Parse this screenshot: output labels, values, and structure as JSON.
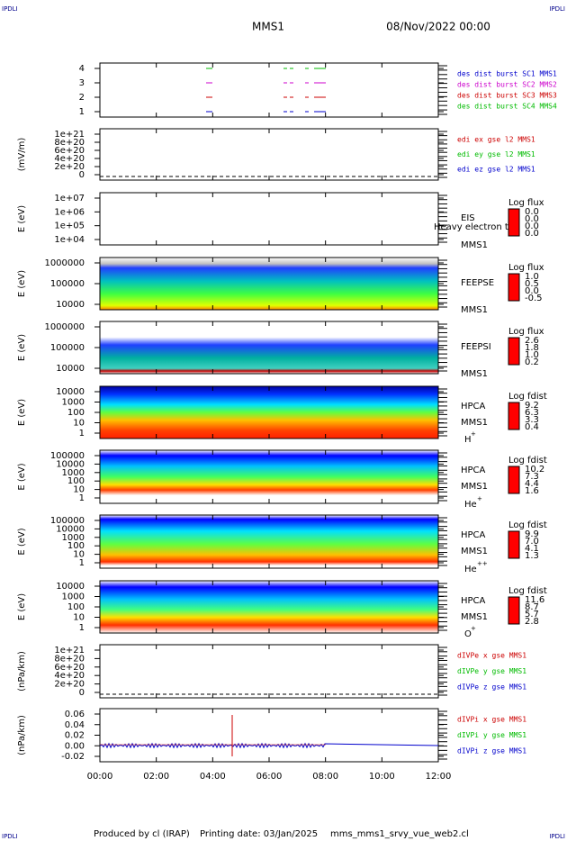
{
  "header": {
    "corners": [
      "IPDLI",
      "IPDLI",
      "IPDLI",
      "IPDLI"
    ],
    "spacecraft": "MMS1",
    "date": "08/Nov/2022 00:00"
  },
  "panels": [
    {
      "ylabel": "",
      "yticks": [
        "4",
        "3",
        "2",
        "1"
      ],
      "legend": [
        {
          "text": "des dist burst SC1 MMS1",
          "color": "#0000cc"
        },
        {
          "text": "des dist burst SC2 MMS2",
          "color": "#cc00cc"
        },
        {
          "text": "des dist burst SC3 MMS3",
          "color": "#cc0000"
        },
        {
          "text": "des dist burst SC4 MMS4",
          "color": "#00bb00"
        }
      ]
    },
    {
      "ylabel": "(mV/m)",
      "yticks": [
        "1e+21",
        "8e+20",
        "6e+20",
        "4e+20",
        "2e+20",
        "0"
      ],
      "legend": [
        {
          "text": "edi ex gse l2 MMS1",
          "color": "#cc0000"
        },
        {
          "text": "edi ey gse l2 MMS1",
          "color": "#00bb00"
        },
        {
          "text": "edi ez gse l2 MMS1",
          "color": "#0000cc"
        }
      ]
    },
    {
      "ylabel": "E (eV)",
      "yticks": [
        "1e+07",
        "1e+06",
        "1e+05",
        "1e+04"
      ],
      "instrument": [
        "EIS",
        "MMS1"
      ],
      "overlay": "Heavy electron to",
      "colorbar": {
        "title": "Log flux",
        "labels": [
          "0.0",
          "0.0",
          "0.0",
          "0.0"
        ]
      }
    },
    {
      "ylabel": "E (eV)",
      "yticks": [
        "1000000",
        "100000",
        "10000"
      ],
      "instrument": [
        "FEEPSE",
        "MMS1"
      ],
      "colorbar": {
        "title": "Log flux",
        "labels": [
          "1.0",
          "0.5",
          "0.0",
          "-0.5"
        ]
      }
    },
    {
      "ylabel": "E (eV)",
      "yticks": [
        "1000000",
        "100000",
        "10000"
      ],
      "instrument": [
        "FEEPSI",
        "MMS1"
      ],
      "colorbar": {
        "title": "Log flux",
        "labels": [
          "2.6",
          "1.8",
          "1.0",
          "0.2"
        ]
      }
    },
    {
      "ylabel": "E (eV)",
      "yticks": [
        "10000",
        "1000",
        "100",
        "10",
        "1"
      ],
      "instrument": [
        "HPCA",
        "MMS1"
      ],
      "species": {
        "base": "H",
        "sup": "+"
      },
      "colorbar": {
        "title": "Log fdist",
        "labels": [
          "9.2",
          "6.3",
          "3.3",
          "0.4"
        ]
      }
    },
    {
      "ylabel": "E (eV)",
      "yticks": [
        "100000",
        "10000",
        "1000",
        "100",
        "10",
        "1"
      ],
      "instrument": [
        "HPCA",
        "MMS1"
      ],
      "species": {
        "base": "He",
        "sup": "+"
      },
      "colorbar": {
        "title": "Log fdist",
        "labels": [
          "10.2",
          "7.3",
          "4.4",
          "1.6"
        ]
      }
    },
    {
      "ylabel": "E (eV)",
      "yticks": [
        "100000",
        "10000",
        "1000",
        "100",
        "10",
        "1"
      ],
      "instrument": [
        "HPCA",
        "MMS1"
      ],
      "species": {
        "base": "He",
        "sup": "++"
      },
      "colorbar": {
        "title": "Log fdist",
        "labels": [
          "9.9",
          "7.0",
          "4.1",
          "1.3"
        ]
      }
    },
    {
      "ylabel": "E (eV)",
      "yticks": [
        "10000",
        "1000",
        "100",
        "10",
        "1"
      ],
      "instrument": [
        "HPCA",
        "MMS1"
      ],
      "species": {
        "base": "O",
        "sup": "+"
      },
      "colorbar": {
        "title": "Log fdist",
        "labels": [
          "11.6",
          "8.7",
          "5.7",
          "2.8"
        ]
      }
    },
    {
      "ylabel": "(nPa/km)",
      "yticks": [
        "1e+21",
        "8e+20",
        "6e+20",
        "4e+20",
        "2e+20",
        "0"
      ],
      "legend": [
        {
          "text": "dIVPe x gse MMS1",
          "color": "#cc0000"
        },
        {
          "text": "dIVPe y gse MMS1",
          "color": "#00bb00"
        },
        {
          "text": "dIVPe z gse MMS1",
          "color": "#0000cc"
        }
      ]
    },
    {
      "ylabel": "(nPa/km)",
      "yticks": [
        "0.06",
        "0.04",
        "0.02",
        "0.00",
        "-0.02"
      ],
      "legend": [
        {
          "text": "dIVPi x gse MMS1",
          "color": "#cc0000"
        },
        {
          "text": "dIVPi y gse MMS1",
          "color": "#00bb00"
        },
        {
          "text": "dIVPi z gse MMS1",
          "color": "#0000cc"
        }
      ]
    }
  ],
  "xticks": [
    "00:00",
    "02:00",
    "04:00",
    "06:00",
    "08:00",
    "10:00",
    "12:00"
  ],
  "footer": [
    "Produced by cl (IRAP)",
    "Printing date: 03/Jan/2025",
    "mms_mms1_srvy_vue_web2.cl"
  ]
}
